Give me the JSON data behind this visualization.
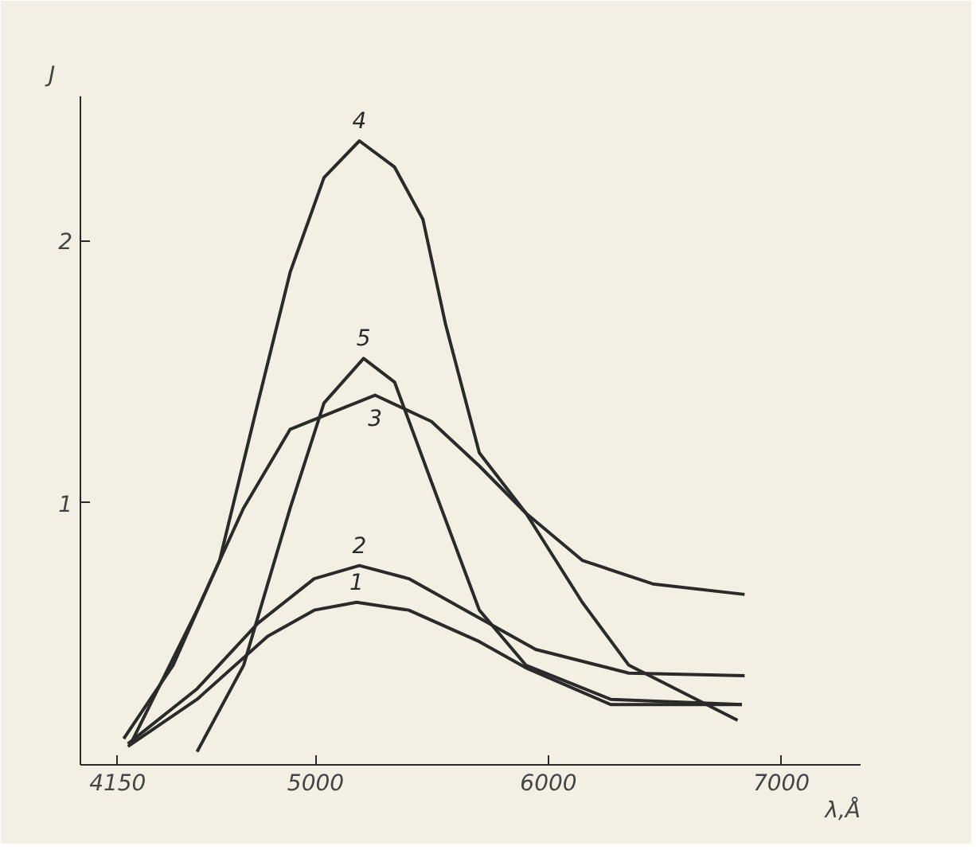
{
  "chart_data": {
    "type": "line",
    "xlabel": "λ,Å",
    "ylabel": "J",
    "xlim": [
      3990,
      7340
    ],
    "ylim": [
      0,
      2.55
    ],
    "xticks": [
      4150,
      5000,
      6000,
      7000
    ],
    "yticks": [
      1,
      2
    ],
    "grid": false,
    "marker": "none",
    "line_style": "solid",
    "series": [
      {
        "name": "1",
        "color": "#2a2a2a",
        "x": [
          4194,
          4491,
          4794,
          4994,
          5176,
          5400,
          5703,
          5903,
          6267,
          6830
        ],
        "values": [
          0.07,
          0.25,
          0.49,
          0.59,
          0.62,
          0.59,
          0.47,
          0.37,
          0.23,
          0.23
        ]
      },
      {
        "name": "2",
        "color": "#2a2a2a",
        "x": [
          4194,
          4491,
          4752,
          4994,
          5188,
          5400,
          5703,
          5945,
          6345,
          6842
        ],
        "values": [
          0.08,
          0.29,
          0.54,
          0.71,
          0.76,
          0.71,
          0.56,
          0.44,
          0.35,
          0.34
        ]
      },
      {
        "name": "3",
        "color": "#2a2a2a",
        "x": [
          4206,
          4491,
          4691,
          4891,
          5255,
          5497,
          5703,
          5903,
          6145,
          6448,
          6842
        ],
        "values": [
          0.08,
          0.59,
          0.98,
          1.28,
          1.41,
          1.31,
          1.14,
          0.96,
          0.78,
          0.69,
          0.65
        ]
      },
      {
        "name": "4",
        "color": "#2a2a2a",
        "x": [
          4176,
          4388,
          4588,
          4752,
          4891,
          5036,
          5188,
          5339,
          5461,
          5558,
          5703,
          5903,
          6145,
          6345,
          6812
        ],
        "values": [
          0.1,
          0.38,
          0.78,
          1.38,
          1.88,
          2.24,
          2.38,
          2.28,
          2.08,
          1.68,
          1.19,
          0.96,
          0.62,
          0.38,
          0.17
        ]
      },
      {
        "name": "5",
        "color": "#2a2a2a",
        "x": [
          4491,
          4691,
          4891,
          5036,
          5206,
          5339,
          5497,
          5703,
          5903,
          6267,
          6830
        ],
        "values": [
          0.05,
          0.38,
          0.98,
          1.38,
          1.55,
          1.46,
          1.08,
          0.59,
          0.38,
          0.25,
          0.23
        ]
      }
    ]
  }
}
